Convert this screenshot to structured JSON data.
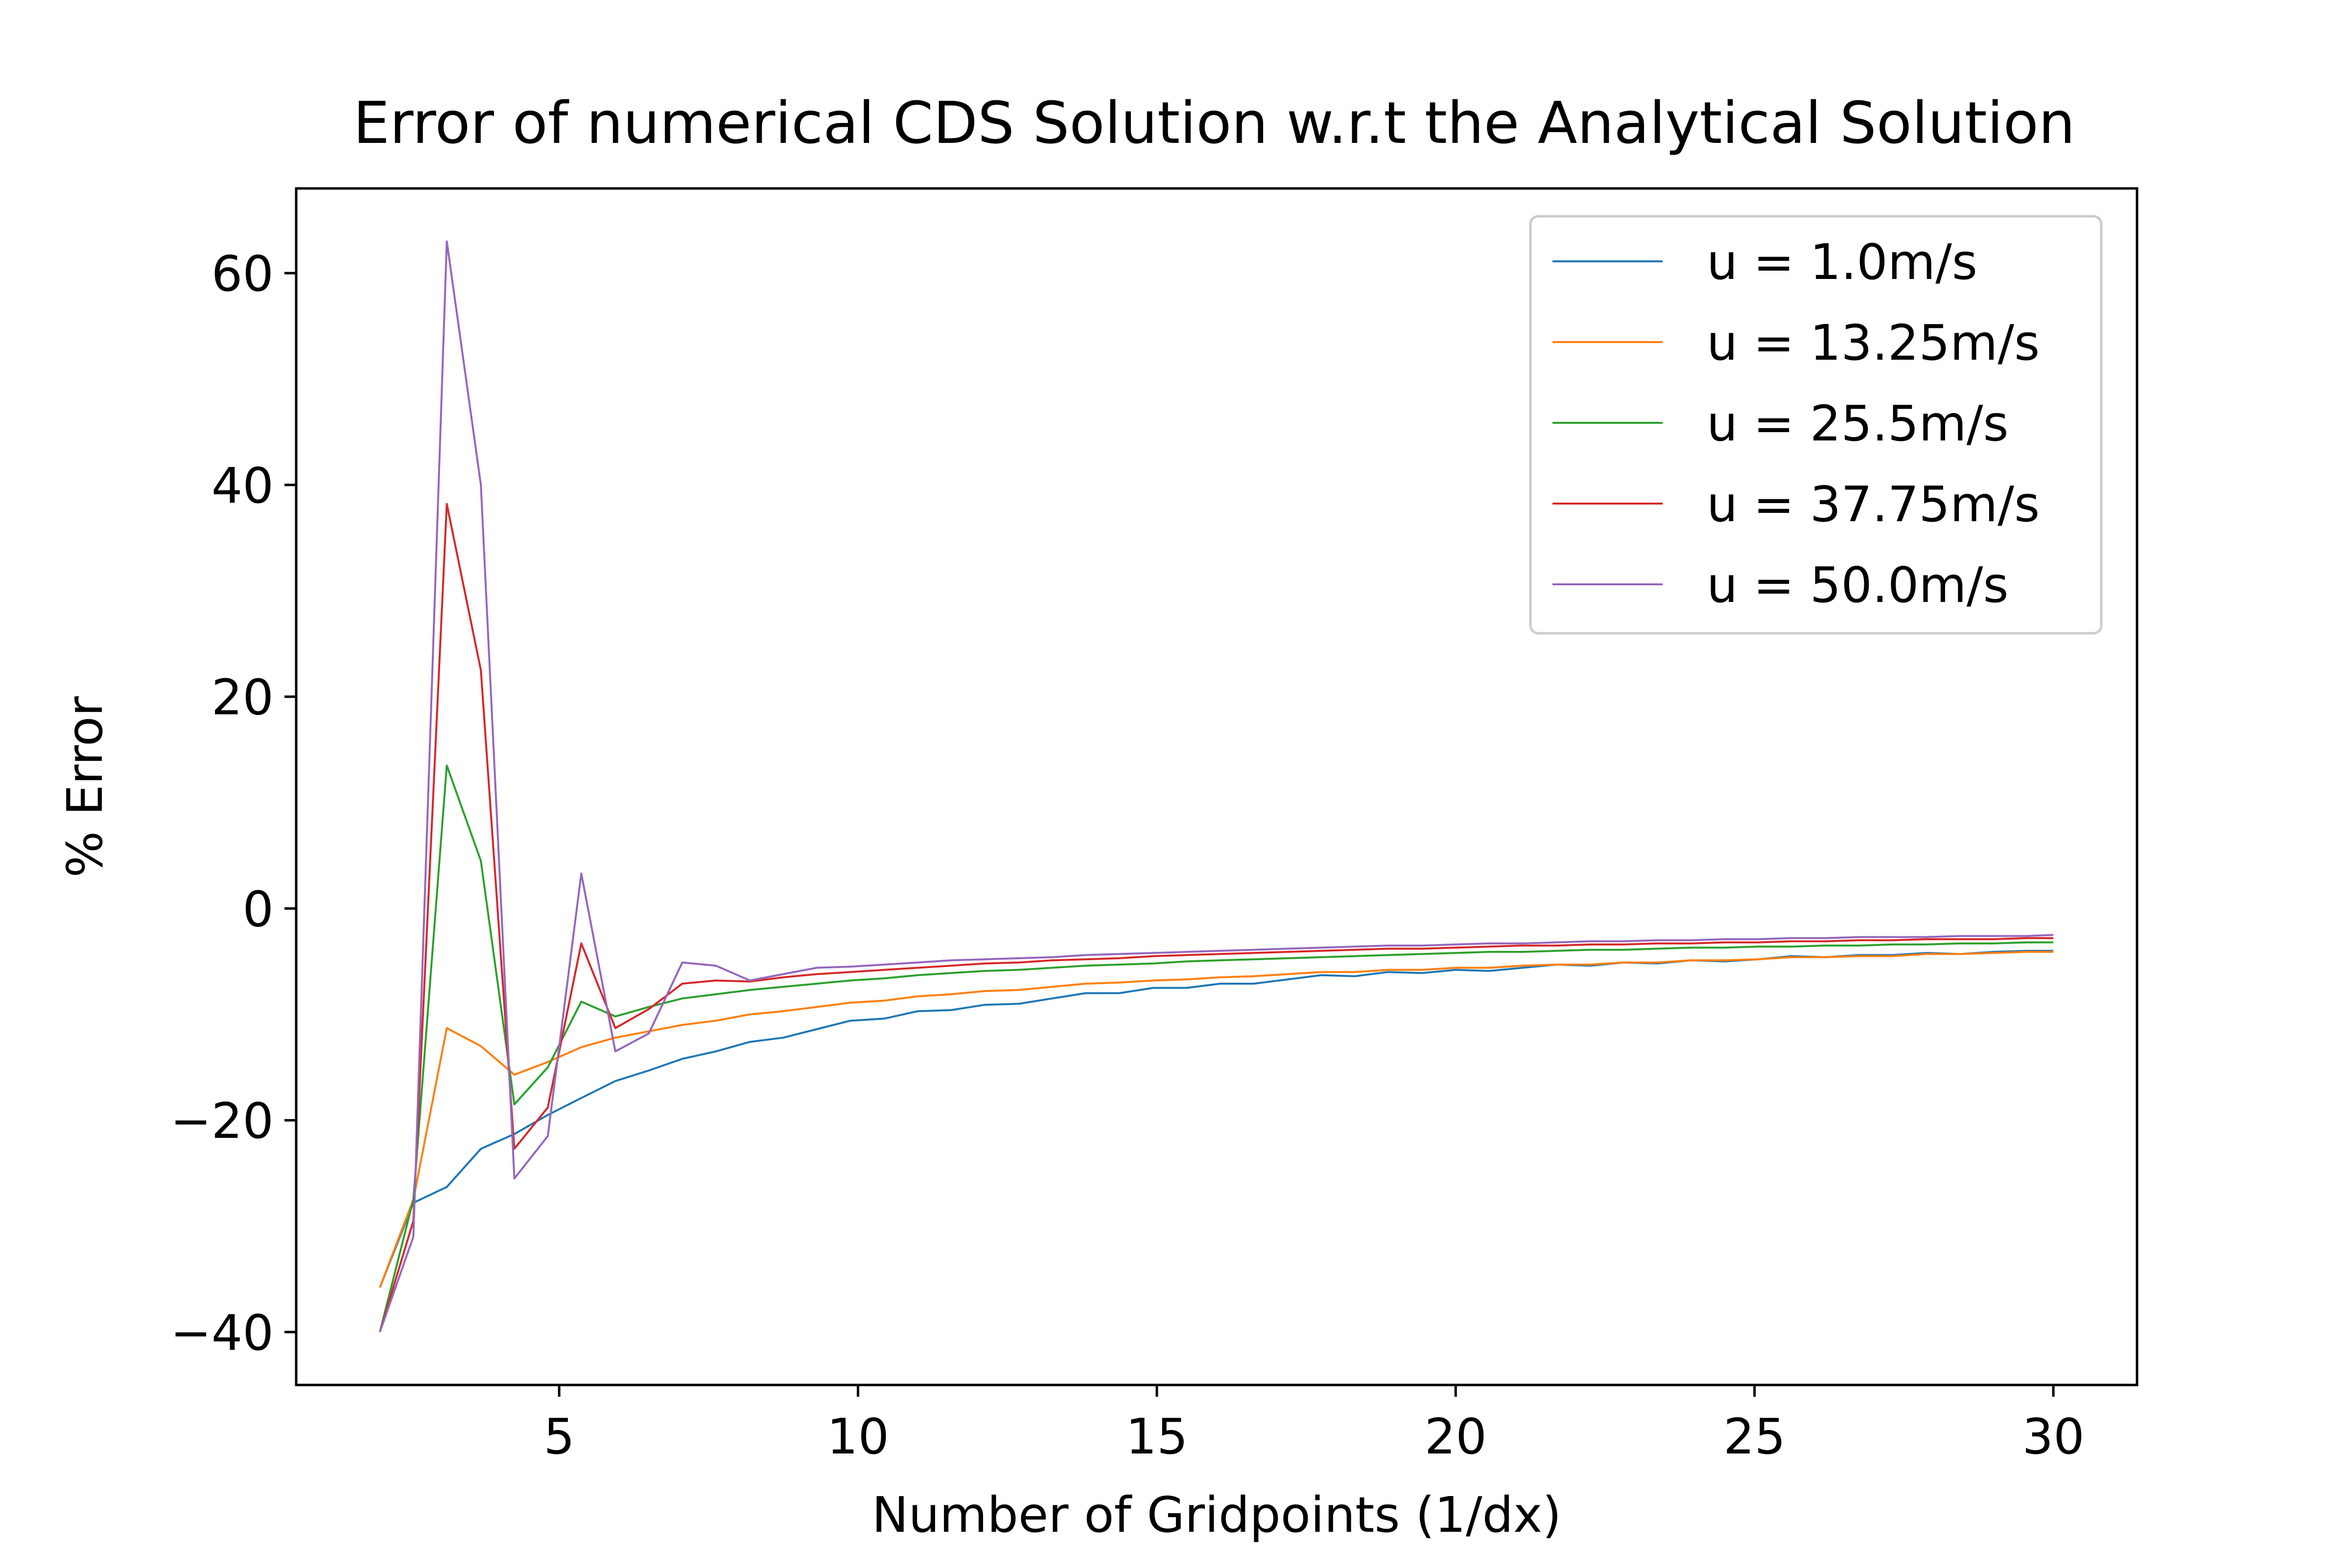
{
  "chart_data": {
    "type": "line",
    "title": "Error of numerical CDS Solution w.r.t the Analytical Solution",
    "xlabel": "Number of Gridpoints (1/dx)",
    "ylabel": "% Error",
    "xlim": [
      0.6,
      31.4
    ],
    "ylim": [
      -45,
      68
    ],
    "xticks": [
      5,
      10,
      15,
      20,
      25,
      30
    ],
    "yticks": [
      -40,
      -20,
      0,
      20,
      40,
      60
    ],
    "grid": false,
    "legend_position": "top-right",
    "x": [
      2.0,
      2.56,
      3.12,
      3.69,
      4.25,
      4.81,
      5.37,
      5.94,
      6.5,
      7.06,
      7.62,
      8.19,
      8.75,
      9.31,
      9.87,
      10.44,
      11.0,
      11.56,
      12.12,
      12.69,
      13.25,
      13.81,
      14.37,
      14.94,
      15.5,
      16.06,
      16.62,
      17.19,
      17.75,
      18.31,
      18.87,
      19.44,
      20.0,
      20.56,
      21.12,
      21.69,
      22.25,
      22.81,
      23.37,
      23.94,
      24.5,
      25.06,
      25.62,
      26.19,
      26.75,
      27.31,
      27.87,
      28.44,
      29.0,
      29.56,
      30.0
    ],
    "series": [
      {
        "name": "u = 1.0m/s",
        "color": "#1f77b4",
        "values": [
          -35.8,
          -27.8,
          -26.3,
          -22.7,
          -21.3,
          -19.5,
          -17.9,
          -16.3,
          -15.3,
          -14.2,
          -13.5,
          -12.6,
          -12.2,
          -11.4,
          -10.6,
          -10.4,
          -9.7,
          -9.6,
          -9.1,
          -9.0,
          -8.5,
          -8.0,
          -8.0,
          -7.5,
          -7.5,
          -7.1,
          -7.1,
          -6.7,
          -6.3,
          -6.4,
          -6.0,
          -6.1,
          -5.8,
          -5.9,
          -5.6,
          -5.3,
          -5.4,
          -5.1,
          -5.2,
          -4.9,
          -5.0,
          -4.8,
          -4.5,
          -4.6,
          -4.4,
          -4.4,
          -4.2,
          -4.3,
          -4.1,
          -4.0,
          -4.0
        ]
      },
      {
        "name": "u = 13.25m/s",
        "color": "#ff7f0e",
        "values": [
          -35.8,
          -27.5,
          -11.3,
          -13.0,
          -15.7,
          -14.5,
          -13.1,
          -12.2,
          -11.6,
          -11.0,
          -10.6,
          -10.0,
          -9.7,
          -9.3,
          -8.9,
          -8.7,
          -8.3,
          -8.1,
          -7.8,
          -7.7,
          -7.4,
          -7.1,
          -7.0,
          -6.8,
          -6.7,
          -6.5,
          -6.4,
          -6.2,
          -6.0,
          -6.0,
          -5.8,
          -5.8,
          -5.6,
          -5.6,
          -5.4,
          -5.3,
          -5.3,
          -5.1,
          -5.1,
          -4.9,
          -4.9,
          -4.8,
          -4.6,
          -4.6,
          -4.5,
          -4.5,
          -4.3,
          -4.3,
          -4.2,
          -4.1,
          -4.1
        ]
      },
      {
        "name": "u = 25.5m/s",
        "color": "#2ca02c",
        "values": [
          -40.0,
          -27.5,
          13.5,
          4.5,
          -18.5,
          -15.0,
          -8.8,
          -10.2,
          -9.3,
          -8.5,
          -8.1,
          -7.7,
          -7.4,
          -7.1,
          -6.8,
          -6.6,
          -6.3,
          -6.1,
          -5.9,
          -5.8,
          -5.6,
          -5.4,
          -5.3,
          -5.2,
          -5.0,
          -4.9,
          -4.8,
          -4.7,
          -4.6,
          -4.5,
          -4.4,
          -4.3,
          -4.2,
          -4.1,
          -4.1,
          -4.0,
          -3.9,
          -3.9,
          -3.8,
          -3.7,
          -3.7,
          -3.6,
          -3.6,
          -3.5,
          -3.5,
          -3.4,
          -3.4,
          -3.3,
          -3.3,
          -3.2,
          -3.2
        ]
      },
      {
        "name": "u = 37.75m/s",
        "color": "#d62728",
        "values": [
          -40.0,
          -29.5,
          38.2,
          22.5,
          -22.7,
          -18.8,
          -3.3,
          -11.3,
          -9.5,
          -7.1,
          -6.8,
          -6.9,
          -6.5,
          -6.2,
          -6.0,
          -5.8,
          -5.6,
          -5.4,
          -5.2,
          -5.1,
          -4.9,
          -4.8,
          -4.7,
          -4.5,
          -4.4,
          -4.3,
          -4.2,
          -4.1,
          -4.0,
          -3.9,
          -3.8,
          -3.8,
          -3.7,
          -3.6,
          -3.5,
          -3.5,
          -3.4,
          -3.4,
          -3.3,
          -3.3,
          -3.2,
          -3.2,
          -3.1,
          -3.1,
          -3.0,
          -3.0,
          -2.9,
          -2.9,
          -2.9,
          -2.8,
          -2.8
        ]
      },
      {
        "name": "u = 50.0m/s",
        "color": "#9467bd",
        "values": [
          -40.0,
          -31.0,
          63.0,
          40.0,
          -25.5,
          -21.5,
          3.3,
          -13.5,
          -11.8,
          -5.1,
          -5.4,
          -6.8,
          -6.2,
          -5.6,
          -5.5,
          -5.3,
          -5.1,
          -4.9,
          -4.8,
          -4.7,
          -4.6,
          -4.4,
          -4.3,
          -4.2,
          -4.1,
          -4.0,
          -3.9,
          -3.8,
          -3.7,
          -3.6,
          -3.5,
          -3.5,
          -3.4,
          -3.3,
          -3.3,
          -3.2,
          -3.1,
          -3.1,
          -3.0,
          -3.0,
          -2.9,
          -2.9,
          -2.8,
          -2.8,
          -2.7,
          -2.7,
          -2.7,
          -2.6,
          -2.6,
          -2.6,
          -2.5
        ]
      }
    ]
  }
}
